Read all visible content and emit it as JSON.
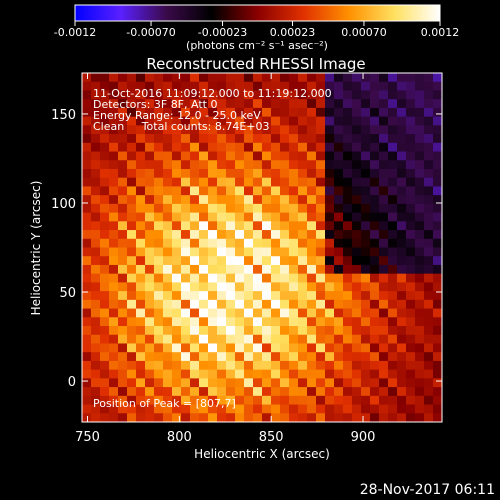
{
  "chart_data": {
    "type": "heatmap",
    "title": "Reconstructed RHESSI Image",
    "xlabel": "Heliocentric X (arcsec)",
    "ylabel": "Heliocentric Y (arcsec)",
    "xlim": [
      747,
      943
    ],
    "ylim": [
      -23,
      173
    ],
    "x_ticks": [
      750,
      800,
      850,
      900
    ],
    "y_ticks": [
      0,
      50,
      100,
      150
    ],
    "grid": false,
    "colorbar": {
      "position": "top",
      "range": [
        -0.0012,
        0.0012
      ],
      "ticks": [
        "-0.0012",
        "-0.00070",
        "-0.00023",
        "0.00023",
        "0.00070",
        "0.0012"
      ],
      "tick_values": [
        -0.0012,
        -0.0007,
        -0.00023,
        0.00023,
        0.0007,
        0.0012
      ],
      "units": "(photons cm⁻² s⁻¹ asec⁻²)",
      "colors": [
        "#0000ff",
        "#5a20ff",
        "#3a0a4a",
        "#000000",
        "#8a0000",
        "#e03000",
        "#ff9000",
        "#ffe060",
        "#ffffff"
      ]
    },
    "annotations": [
      "11-Oct-2016 11:09:12.000 to 11:19:12.000",
      "Detectors: 3F 8F, Att 0",
      "Energy Range: 12.0 - 25.0 keV",
      "Clean     Total counts: 8.74E+03"
    ],
    "peak_label": "Position of Peak = [807,7]",
    "peak": [
      807,
      7
    ],
    "grid_size": 40
  },
  "footer": {
    "timestamp": "28-Nov-2017 06:11"
  }
}
